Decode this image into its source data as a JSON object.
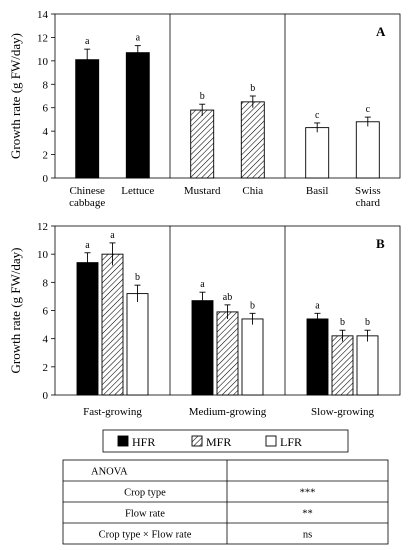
{
  "chart_data": [
    {
      "type": "bar",
      "panel_label": "A",
      "ylabel": "Growth rate (g FW/day)",
      "ylim": [
        0,
        14
      ],
      "yticks": [
        "0",
        "2",
        "4",
        "6",
        "8",
        "10",
        "12",
        "14"
      ],
      "groups": [
        {
          "categories": [
            "Chinese\ncabbage",
            "Lettuce"
          ],
          "values": [
            10.1,
            10.7
          ],
          "errors": [
            0.9,
            0.6
          ],
          "letters": [
            "a",
            "a"
          ],
          "pattern": "solid"
        },
        {
          "categories": [
            "Mustard",
            "Chia"
          ],
          "values": [
            5.8,
            6.5
          ],
          "errors": [
            0.5,
            0.5
          ],
          "letters": [
            "b",
            "b"
          ],
          "pattern": "hatch"
        },
        {
          "categories": [
            "Basil",
            "Swiss\nchard"
          ],
          "values": [
            4.3,
            4.8
          ],
          "errors": [
            0.4,
            0.4
          ],
          "letters": [
            "c",
            "c"
          ],
          "pattern": "open"
        }
      ]
    },
    {
      "type": "bar",
      "panel_label": "B",
      "ylabel": "Growth rate (g FW/day)",
      "ylim": [
        0,
        12
      ],
      "yticks": [
        "0",
        "2",
        "4",
        "6",
        "8",
        "10",
        "12"
      ],
      "categories": [
        "Fast-growing",
        "Medium-growing",
        "Slow-growing"
      ],
      "series": [
        {
          "name": "HFR",
          "pattern": "solid",
          "values": [
            9.4,
            6.7,
            5.4
          ],
          "errors": [
            0.7,
            0.6,
            0.4
          ],
          "letters": [
            "a",
            "a",
            "a"
          ]
        },
        {
          "name": "MFR",
          "pattern": "hatch",
          "values": [
            10.0,
            5.9,
            4.2
          ],
          "errors": [
            0.8,
            0.5,
            0.4
          ],
          "letters": [
            "a",
            "ab",
            "b"
          ]
        },
        {
          "name": "LFR",
          "pattern": "open",
          "values": [
            7.2,
            5.4,
            4.2
          ],
          "errors": [
            0.6,
            0.4,
            0.4
          ],
          "letters": [
            "b",
            "b",
            "b"
          ]
        }
      ]
    }
  ],
  "table": {
    "rows": [
      {
        "label": "ANOVA",
        "value": ""
      },
      {
        "label": "Crop type",
        "value": "***"
      },
      {
        "label": "Flow rate",
        "value": "**"
      },
      {
        "label": "Crop type × Flow rate",
        "value": "ns"
      }
    ]
  }
}
